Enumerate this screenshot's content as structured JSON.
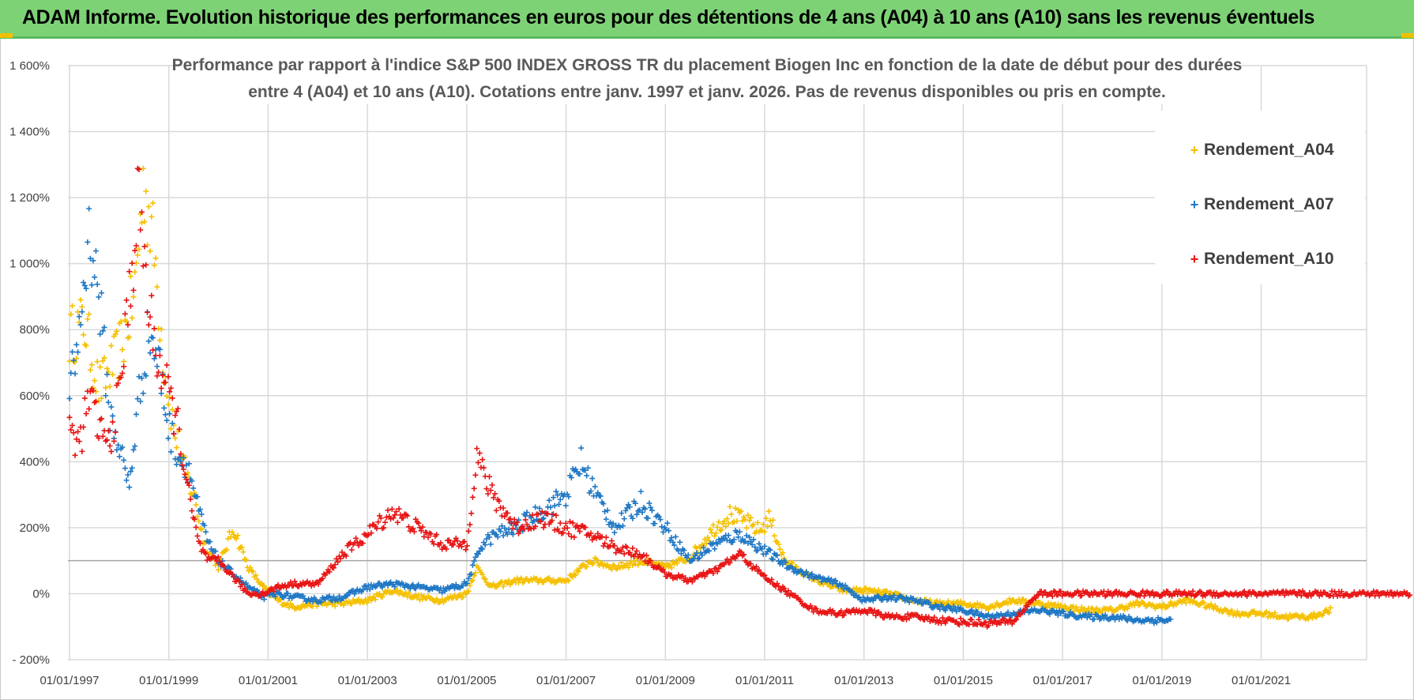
{
  "header": {
    "title": "ADAM Informe. Evolution historique des performances en euros pour des détentions de 4 ans (A04) à 10 ans (A10) sans les revenus éventuels"
  },
  "chart_data": {
    "type": "scatter",
    "title_lines": [
      "Performance par rapport à l'indice S&P 500 INDEX GROSS TR  du placement Biogen Inc en fonction de la date de début pour des durées",
      "entre 4 (A04) et 10 ans (A10).  Cotations entre janv. 1997 et janv. 2026. Pas de revenus disponibles ou pris en compte."
    ],
    "xlabel": "",
    "ylabel": "",
    "x_range": [
      1997.0,
      2024.0
    ],
    "ylim": [
      -200,
      1600
    ],
    "y_ticks": [
      -200,
      0,
      200,
      400,
      600,
      800,
      1000,
      1200,
      1400,
      1600
    ],
    "y_tick_labels": [
      "- 200%",
      "0%",
      "200%",
      "400%",
      "600%",
      "800%",
      "1 000%",
      "1 200%",
      "1 400%",
      "1 600%"
    ],
    "x_ticks": [
      1997,
      1999,
      2001,
      2003,
      2005,
      2007,
      2009,
      2011,
      2013,
      2015,
      2017,
      2019,
      2021
    ],
    "x_tick_labels": [
      "01/01/1997",
      "01/01/1999",
      "01/01/2001",
      "01/01/2003",
      "01/01/2005",
      "01/01/2007",
      "01/01/2009",
      "01/01/2011",
      "01/01/2013",
      "01/01/2015",
      "01/01/2017",
      "01/01/2019",
      "01/01/2021"
    ],
    "reference_line": 100,
    "legend_position": "top-right",
    "series": [
      {
        "name": "Rendement_A04",
        "color": "#f5c000",
        "x": [
          1997.0,
          1997.3,
          1997.6,
          1997.9,
          1998.1,
          1998.3,
          1998.5,
          1998.7,
          1998.9,
          1999.1,
          1999.3,
          1999.5,
          1999.7,
          2000.0,
          2000.3,
          2000.6,
          2000.9,
          2001.2,
          2001.5,
          2002.0,
          2002.5,
          2003.0,
          2003.5,
          2004.0,
          2004.5,
          2005.0,
          2005.2,
          2005.5,
          2006.0,
          2006.5,
          2007.0,
          2007.5,
          2008.0,
          2008.5,
          2009.0,
          2009.5,
          2010.0,
          2010.3,
          2010.6,
          2010.9,
          2011.1,
          2011.4,
          2011.8,
          2012.2,
          2012.6,
          2013.0,
          2013.5,
          2014.0,
          2014.5,
          2015.0,
          2015.5,
          2016.0,
          2016.5,
          2017.0,
          2017.5,
          2018.0,
          2018.5,
          2019.0,
          2019.5,
          2020.0,
          2020.5,
          2021.0,
          2021.5,
          2022.0,
          2022.4
        ],
        "y": [
          780,
          820,
          620,
          700,
          780,
          900,
          1250,
          1050,
          700,
          500,
          380,
          300,
          160,
          80,
          200,
          80,
          20,
          -20,
          -40,
          -30,
          -30,
          -20,
          10,
          -10,
          -20,
          0,
          80,
          20,
          40,
          40,
          40,
          100,
          80,
          100,
          80,
          110,
          200,
          240,
          220,
          190,
          230,
          100,
          60,
          30,
          10,
          10,
          0,
          -20,
          -30,
          -30,
          -40,
          -20,
          -30,
          -40,
          -50,
          -50,
          -30,
          -40,
          -20,
          -40,
          -60,
          -60,
          -70,
          -70,
          -50
        ]
      },
      {
        "name": "Rendement_A07",
        "color": "#1f77c4",
        "x": [
          1997.0,
          1997.2,
          1997.4,
          1997.6,
          1997.8,
          1998.0,
          1998.2,
          1998.4,
          1998.6,
          1998.8,
          1999.0,
          1999.2,
          1999.4,
          1999.6,
          1999.8,
          2000.0,
          2000.3,
          2000.6,
          2000.9,
          2001.2,
          2001.5,
          2002.0,
          2002.5,
          2003.0,
          2003.5,
          2004.0,
          2004.5,
          2005.0,
          2005.3,
          2005.6,
          2006.0,
          2006.5,
          2007.0,
          2007.3,
          2007.6,
          2008.0,
          2008.5,
          2009.0,
          2009.5,
          2010.0,
          2010.5,
          2011.0,
          2011.5,
          2012.0,
          2012.5,
          2013.0,
          2013.5,
          2014.0,
          2014.5,
          2015.0,
          2015.5,
          2016.0,
          2016.5,
          2017.0,
          2017.5,
          2018.0,
          2018.5,
          2019.0,
          2019.2
        ],
        "y": [
          600,
          800,
          1100,
          900,
          550,
          450,
          320,
          600,
          800,
          700,
          500,
          420,
          380,
          250,
          150,
          100,
          60,
          20,
          -10,
          0,
          -10,
          -20,
          -10,
          20,
          30,
          20,
          10,
          30,
          150,
          180,
          200,
          250,
          300,
          400,
          300,
          200,
          280,
          200,
          100,
          150,
          180,
          130,
          80,
          50,
          30,
          -20,
          -10,
          -20,
          -40,
          -50,
          -70,
          -60,
          -50,
          -60,
          -70,
          -70,
          -80,
          -80,
          -80
        ]
      },
      {
        "name": "Rendement_A10",
        "color": "#e81414",
        "x": [
          1997.0,
          1997.2,
          1997.4,
          1997.6,
          1997.8,
          1998.0,
          1998.2,
          1998.4,
          1998.6,
          1998.8,
          1999.0,
          1999.2,
          1999.4,
          1999.6,
          1999.8,
          2000.0,
          2000.3,
          2000.6,
          2000.9,
          2001.2,
          2001.5,
          2002.0,
          2002.5,
          2003.0,
          2003.5,
          2004.0,
          2004.5,
          2005.0,
          2005.2,
          2005.5,
          2006.0,
          2006.5,
          2007.0,
          2007.5,
          2008.0,
          2008.5,
          2009.0,
          2009.5,
          2010.0,
          2010.5,
          2011.0,
          2011.5,
          2012.0,
          2012.5,
          2013.0,
          2013.5,
          2014.0,
          2014.5,
          2015.0,
          2015.5,
          2016.0,
          2016.5,
          2017.0,
          2017.5,
          2018.0,
          2018.5,
          2019.0,
          2019.5,
          2020.0,
          2020.5,
          2021.0,
          2021.5,
          2022.0,
          2022.5,
          2023.0,
          2023.5,
          2024.0
        ],
        "y": [
          500,
          450,
          600,
          500,
          450,
          600,
          900,
          1200,
          850,
          700,
          600,
          500,
          300,
          150,
          100,
          100,
          50,
          0,
          0,
          20,
          30,
          30,
          120,
          180,
          250,
          200,
          150,
          150,
          420,
          300,
          200,
          230,
          200,
          180,
          140,
          120,
          60,
          40,
          70,
          120,
          50,
          0,
          -50,
          -60,
          -50,
          -70,
          -70,
          -80,
          -85,
          -90,
          -85,
          0,
          0,
          0,
          0,
          0,
          0,
          0,
          0,
          0,
          0,
          0,
          0,
          0,
          0,
          0,
          0
        ]
      }
    ]
  }
}
